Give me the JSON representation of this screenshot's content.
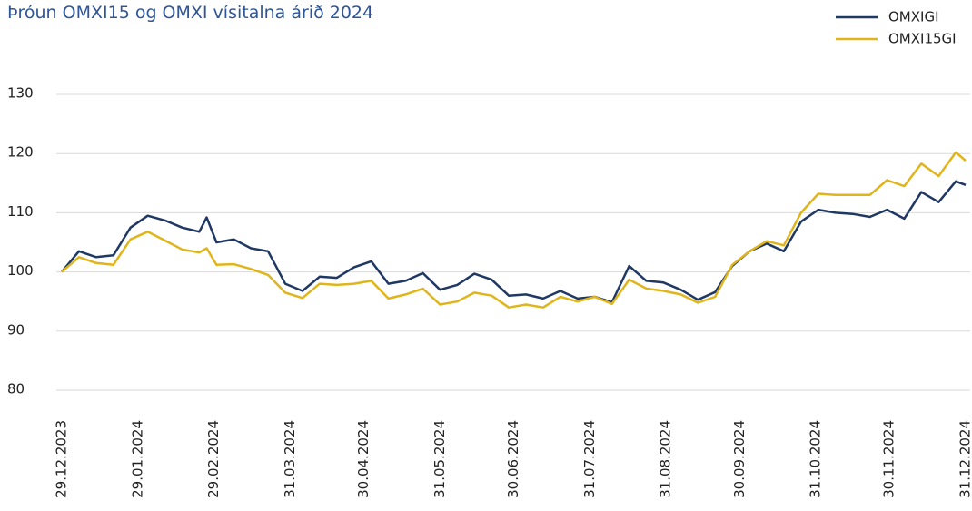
{
  "chart_data": {
    "type": "line",
    "title": "Þróun OMXI15 og OMXI vísitalna árið 2024",
    "x": [
      "29.12.2023",
      "05.01.2024",
      "12.01.2024",
      "19.01.2024",
      "26.01.2024",
      "02.02.2024",
      "09.02.2024",
      "16.02.2024",
      "23.02.2024",
      "26.02.2024",
      "01.03.2024",
      "08.03.2024",
      "15.03.2024",
      "22.03.2024",
      "29.03.2024",
      "05.04.2024",
      "12.04.2024",
      "19.04.2024",
      "26.04.2024",
      "03.05.2024",
      "10.05.2024",
      "17.05.2024",
      "24.05.2024",
      "31.05.2024",
      "07.06.2024",
      "14.06.2024",
      "21.06.2024",
      "28.06.2024",
      "05.07.2024",
      "12.07.2024",
      "19.07.2024",
      "26.07.2024",
      "02.08.2024",
      "09.08.2024",
      "16.08.2024",
      "23.08.2024",
      "30.08.2024",
      "06.09.2024",
      "13.09.2024",
      "20.09.2024",
      "27.09.2024",
      "04.10.2024",
      "11.10.2024",
      "18.10.2024",
      "25.10.2024",
      "01.11.2024",
      "08.11.2024",
      "15.11.2024",
      "22.11.2024",
      "29.11.2024",
      "06.12.2024",
      "13.12.2024",
      "20.12.2024",
      "27.12.2024",
      "31.12.2024"
    ],
    "series": [
      {
        "name": "OMXIGI",
        "color": "#1f3864",
        "values": [
          100,
          103.5,
          102.5,
          102.8,
          107.5,
          109.5,
          108.7,
          107.5,
          106.8,
          109.2,
          105.0,
          105.5,
          104.0,
          103.5,
          98.0,
          96.8,
          99.2,
          99.0,
          100.8,
          101.8,
          98.0,
          98.5,
          99.8,
          97.0,
          97.8,
          99.7,
          98.7,
          96.0,
          96.2,
          95.5,
          96.8,
          95.5,
          95.8,
          94.9,
          101.0,
          98.5,
          98.2,
          97.0,
          95.3,
          96.6,
          101.0,
          103.5,
          104.8,
          103.5,
          108.5,
          110.5,
          110.0,
          109.8,
          109.3,
          110.5,
          109.0,
          113.5,
          111.8,
          115.3,
          114.7
        ]
      },
      {
        "name": "OMXI15GI",
        "color": "#e0b51c",
        "values": [
          100,
          102.5,
          101.5,
          101.2,
          105.5,
          106.8,
          105.3,
          103.8,
          103.3,
          104.0,
          101.2,
          101.3,
          100.5,
          99.5,
          96.5,
          95.6,
          98.0,
          97.8,
          98.0,
          98.5,
          95.5,
          96.2,
          97.2,
          94.5,
          95.0,
          96.5,
          96.0,
          94.0,
          94.5,
          94.0,
          95.8,
          95.0,
          95.8,
          94.6,
          98.7,
          97.2,
          96.8,
          96.2,
          94.8,
          95.8,
          101.2,
          103.5,
          105.2,
          104.5,
          110.0,
          113.2,
          113.0,
          113.0,
          113.0,
          115.5,
          114.5,
          118.3,
          116.2,
          120.2,
          118.8
        ]
      }
    ],
    "xlim": [
      "29.12.2023",
      "31.12.2024"
    ],
    "xticks": [
      "29.12.2023",
      "29.01.2024",
      "29.02.2024",
      "31.03.2024",
      "30.04.2024",
      "31.05.2024",
      "30.06.2024",
      "31.07.2024",
      "31.08.2024",
      "30.09.2024",
      "31.10.2024",
      "30.11.2024",
      "31.12.2024"
    ],
    "ylim": [
      80,
      130
    ],
    "yticks": [
      80,
      90,
      100,
      110,
      120,
      130
    ],
    "grid": true,
    "legend": "top-right"
  }
}
